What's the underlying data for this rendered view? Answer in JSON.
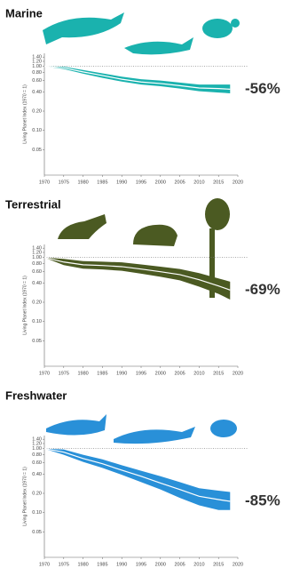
{
  "chart_data": [
    {
      "type": "band-line",
      "title": "Marine",
      "y_label": "Living Planet Index (1970 = 1)",
      "annotation": "-56%",
      "color": "#1ab2ae",
      "log_y": true,
      "reference": 1,
      "x": [
        1970,
        1975,
        1980,
        1985,
        1990,
        1995,
        2000,
        2005,
        2010,
        2015,
        2018
      ],
      "values": [
        1.0,
        0.95,
        0.82,
        0.72,
        0.63,
        0.57,
        0.54,
        0.5,
        0.46,
        0.45,
        0.44
      ],
      "upper": [
        1.0,
        0.99,
        0.88,
        0.78,
        0.69,
        0.63,
        0.6,
        0.56,
        0.52,
        0.52,
        0.52
      ],
      "lower": [
        1.0,
        0.91,
        0.77,
        0.66,
        0.58,
        0.52,
        0.49,
        0.45,
        0.41,
        0.39,
        0.38
      ],
      "xlim": [
        1970,
        2020
      ],
      "xticks": [
        1970,
        1975,
        1980,
        1985,
        1990,
        1995,
        2000,
        2005,
        2010,
        2015,
        2020
      ],
      "ylim": [
        0.02,
        1.6
      ],
      "yticks": [
        {
          "value": 1.4,
          "label": "1.40"
        },
        {
          "value": 1.2,
          "label": "1.20"
        },
        {
          "value": 1,
          "label": "1.00"
        },
        {
          "value": 0.8,
          "label": "0.80"
        },
        {
          "value": 0.6,
          "label": "0.60"
        },
        {
          "value": 0.4,
          "label": "0.40"
        },
        {
          "value": 0.2,
          "label": "0.20"
        },
        {
          "value": 0.1,
          "label": "0.10"
        },
        {
          "value": 0.05,
          "label": "0.05"
        }
      ]
    },
    {
      "type": "band-line",
      "title": "Terrestrial",
      "y_label": "Living Planet Index (1970 = 1)",
      "annotation": "-69%",
      "color": "#4b5a22",
      "log_y": true,
      "reference": 1,
      "x": [
        1970,
        1975,
        1980,
        1985,
        1990,
        1995,
        2000,
        2005,
        2010,
        2015,
        2018
      ],
      "values": [
        1.0,
        0.85,
        0.77,
        0.75,
        0.72,
        0.66,
        0.6,
        0.54,
        0.45,
        0.36,
        0.31
      ],
      "upper": [
        1.0,
        0.95,
        0.88,
        0.86,
        0.84,
        0.78,
        0.72,
        0.66,
        0.57,
        0.47,
        0.42
      ],
      "lower": [
        1.0,
        0.76,
        0.67,
        0.65,
        0.62,
        0.56,
        0.5,
        0.44,
        0.35,
        0.27,
        0.22
      ],
      "xlim": [
        1970,
        2020
      ],
      "xticks": [
        1970,
        1975,
        1980,
        1985,
        1990,
        1995,
        2000,
        2005,
        2010,
        2015,
        2020
      ],
      "ylim": [
        0.02,
        1.6
      ],
      "yticks": [
        {
          "value": 1.4,
          "label": "1.40"
        },
        {
          "value": 1.2,
          "label": "1.20"
        },
        {
          "value": 1,
          "label": "1.00"
        },
        {
          "value": 0.8,
          "label": "0.80"
        },
        {
          "value": 0.6,
          "label": "0.60"
        },
        {
          "value": 0.4,
          "label": "0.40"
        },
        {
          "value": 0.2,
          "label": "0.20"
        },
        {
          "value": 0.1,
          "label": "0.10"
        },
        {
          "value": 0.05,
          "label": "0.05"
        }
      ]
    },
    {
      "type": "band-line",
      "title": "Freshwater",
      "y_label": "Living Planet Index (1970 = 1)",
      "annotation": "-85%",
      "color": "#2990d8",
      "log_y": true,
      "reference": 1,
      "x": [
        1970,
        1975,
        1980,
        1985,
        1990,
        1995,
        2000,
        2005,
        2010,
        2015,
        2018
      ],
      "values": [
        1.0,
        0.88,
        0.7,
        0.58,
        0.46,
        0.37,
        0.29,
        0.23,
        0.18,
        0.16,
        0.15
      ],
      "upper": [
        1.0,
        0.97,
        0.8,
        0.68,
        0.55,
        0.45,
        0.37,
        0.3,
        0.24,
        0.22,
        0.21
      ],
      "lower": [
        1.0,
        0.8,
        0.62,
        0.5,
        0.39,
        0.3,
        0.23,
        0.17,
        0.13,
        0.11,
        0.11
      ],
      "xlim": [
        1970,
        2020
      ],
      "xticks": [
        1970,
        1975,
        1980,
        1985,
        1990,
        1995,
        2000,
        2005,
        2010,
        2015,
        2020
      ],
      "ylim": [
        0.02,
        1.6
      ],
      "yticks": [
        {
          "value": 1.4,
          "label": "1.40"
        },
        {
          "value": 1.2,
          "label": "1.20"
        },
        {
          "value": 1,
          "label": "1.00"
        },
        {
          "value": 0.8,
          "label": "0.80"
        },
        {
          "value": 0.6,
          "label": "0.60"
        },
        {
          "value": 0.4,
          "label": "0.40"
        },
        {
          "value": 0.2,
          "label": "0.20"
        },
        {
          "value": 0.1,
          "label": "0.10"
        },
        {
          "value": 0.05,
          "label": "0.05"
        }
      ]
    }
  ]
}
